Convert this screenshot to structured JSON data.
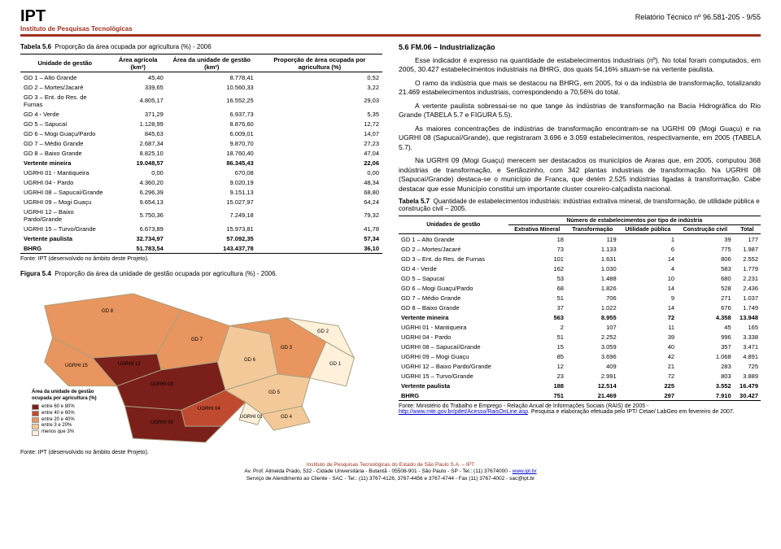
{
  "header": {
    "logo": "IPT",
    "logo_sub": "Instituto de Pesquisas Tecnológicas",
    "report": "Relatório Técnico nº 96.581-205 - 9/55"
  },
  "left": {
    "table56": {
      "title_bold": "Tabela 5.6",
      "title_rest": "Proporção da área ocupada por agricultura (%) - 2006",
      "headers": [
        "Unidade de gestão",
        "Área agrícola (km²)",
        "Área da unidade de gestão (km²)",
        "Proporção de área ocupada por agricultura (%)"
      ],
      "rows": [
        [
          "GD 1 – Alto Grande",
          "45,40",
          "8.778,41",
          "0,52"
        ],
        [
          "GD 2 – Mortes/Jacaré",
          "339,65",
          "10.560,33",
          "3,22"
        ],
        [
          "GD 3 – Ent. do Res. de Furnas",
          "4.805,17",
          "16.552,25",
          "29,03"
        ],
        [
          "GD 4 - Verde",
          "371,29",
          "6.937,73",
          "5,35"
        ],
        [
          "GD 5 – Sapucaí",
          "1.128,99",
          "8.876,60",
          "12,72"
        ],
        [
          "GD 6 – Mogi Guaçu/Pardo",
          "845,63",
          "6.009,01",
          "14,07"
        ],
        [
          "GD 7 – Médio Grande",
          "2.687,34",
          "9.870,70",
          "27,23"
        ],
        [
          "GD 8 – Baixo Grande",
          "8.825,10",
          "18.760,40",
          "47,04"
        ]
      ],
      "bold_rows": [
        [
          "Vertente mineira",
          "19.048,57",
          "86.345,43",
          "22,06"
        ]
      ],
      "rows2": [
        [
          "UGRHI 01 - Mantiqueira",
          "0,00",
          "670,08",
          "0,00"
        ],
        [
          "UGRHI 04 - Pardo",
          "4.360,20",
          "9.020,19",
          "48,34"
        ],
        [
          "UGRHI 08 – Sapucaí/Grande",
          "6.296,39",
          "9.151,13",
          "68,80"
        ],
        [
          "UGRHI 09 – Mogi Guaçu",
          "9.654,13",
          "15.027,97",
          "64,24"
        ],
        [
          "UGRHI 12 – Baixo Pardo/Grande",
          "5.750,36",
          "7.249,18",
          "79,32"
        ],
        [
          "UGRHI 15 – Turvo/Grande",
          "6.673,89",
          "15.973,81",
          "41,78"
        ]
      ],
      "bold_rows2": [
        [
          "Vertente paulista",
          "32.734,97",
          "57.092,35",
          "57,34"
        ],
        [
          "BHRG",
          "51.783,54",
          "143.437,78",
          "36,10"
        ]
      ],
      "source": "Fonte: IPT (desenvolvido no âmbito deste Projeto)."
    },
    "figure54": {
      "title_bold": "Figura 5.4",
      "title_rest": "Proporção da área da unidade de gestão ocupada por agricultura (%) - 2006.",
      "source": "Fonte: IPT (desenvolvido no âmbito deste Projeto).",
      "legend": {
        "title": "Área da unidade de gestão ocupada por agricultura (%)",
        "items": [
          {
            "color": "#7a1f1a",
            "label": "entre 60 e 80%"
          },
          {
            "color": "#c04a30",
            "label": "entre 40 e 60%"
          },
          {
            "color": "#e8955f",
            "label": "entre 20 e 40%"
          },
          {
            "color": "#f4c99a",
            "label": "entre 3 e 20%"
          },
          {
            "color": "#fef0d9",
            "label": "menos que 3%"
          }
        ]
      },
      "region_labels": [
        "GD 8",
        "UGRHI 15",
        "UGRHI 12",
        "UGRHI 08",
        "GD 7",
        "UGRHI 04",
        "UGRHI 09",
        "GD 6",
        "GD 3",
        "GD 2",
        "GD 1",
        "GD 5",
        "GD 4",
        "UGRHI 01"
      ],
      "region_styles": {
        "outline": "#a8a080",
        "bg": "#ffffff"
      }
    }
  },
  "right": {
    "section_title": "5.6  FM.06 – Industrialização",
    "paragraphs": [
      "Esse indicador é expresso na quantidade de estabelecimentos industriais (nº). No total foram computados, em 2005, 30.427 estabelecimentos industriais na BHRG, dos quais 54,16% situam-se na vertente paulista.",
      "O ramo da indústria que mais se destacou na BHRG, em 2005, foi o da indústria de transformação, totalizando 21.469 estabelecimentos industriais, correspondendo a 70,56% do total.",
      "A vertente paulista sobressai-se no que tange às indústrias de transformação na Bacia Hidrográfica do Rio Grande (TABELA 5.7 e FIGURA 5.5).",
      "As maiores concentrações de indústrias de transformação encontram-se na UGRHI 09 (Mogi Guaçu) e na UGRHI 08 (Sapucaí/Grande), que registraram 3.696 e 3.059 estabelecimentos, respectivamente, em 2005 (TABELA 5.7).",
      "Na UGRHI 09 (Mogi Guaçu) merecem ser destacados os municípios de Araras que, em 2005, computou 368 indústrias de transformação, e Sertãozinho, com 342 plantas industriais de transformação. Na UGRHI 08 (Sapucaí/Grande) destaca-se o município de Franca, que detém 2.525 indústrias ligadas à transformação. Cabe destacar que esse Município constitui um importante cluster coureiro-calçadista nacional."
    ],
    "table57": {
      "title_bold": "Tabela 5.7",
      "title_rest": "Quantidade de estabelecimentos industriais: indústrias extrativa mineral, de transformação, de utilidade pública e construção civil – 2005.",
      "sup_header": "Número de estabelecimentos por tipo de indústria",
      "headers": [
        "Unidades de gestão",
        "Extrativa Mineral",
        "Transformação",
        "Utilidade pública",
        "Construção civil",
        "Total"
      ],
      "rows": [
        [
          "GD 1 – Alto Grande",
          "18",
          "119",
          "1",
          "39",
          "177"
        ],
        [
          "GD 2 – Mortes/Jacaré",
          "73",
          "1.133",
          "6",
          "775",
          "1.987"
        ],
        [
          "GD 3 – Ent. do Res. de Furnas",
          "101",
          "1.631",
          "14",
          "806",
          "2.552"
        ],
        [
          "GD 4 - Verde",
          "162",
          "1.030",
          "4",
          "583",
          "1.779"
        ],
        [
          "GD 5 – Sapucaí",
          "53",
          "1.488",
          "10",
          "680",
          "2.231"
        ],
        [
          "GD 6 – Mogi Guaçu/Pardo",
          "68",
          "1.826",
          "14",
          "528",
          "2.436"
        ],
        [
          "GD 7 – Médio Grande",
          "51",
          "706",
          "9",
          "271",
          "1.037"
        ],
        [
          "GD 8 – Baixo Grande",
          "37",
          "1.022",
          "14",
          "676",
          "1.749"
        ]
      ],
      "bold_rows": [
        [
          "Vertente mineira",
          "563",
          "8.955",
          "72",
          "4.358",
          "13.948"
        ]
      ],
      "rows2": [
        [
          "UGRHI 01 - Mantiqueira",
          "2",
          "107",
          "11",
          "45",
          "165"
        ],
        [
          "UGRHI 04 - Pardo",
          "51",
          "2.252",
          "39",
          "996",
          "3.338"
        ],
        [
          "UGRHI 08 – Sapucaí/Grande",
          "15",
          "3.059",
          "40",
          "357",
          "3.471"
        ],
        [
          "UGRHI 09 – Mogi Guaçu",
          "85",
          "3.696",
          "42",
          "1.068",
          "4.891"
        ],
        [
          "UGRHI 12 – Baixo Pardo/Grande",
          "12",
          "409",
          "21",
          "283",
          "725"
        ],
        [
          "UGRHI 15 – Turvo/Grande",
          "23",
          "2.991",
          "72",
          "803",
          "3.889"
        ]
      ],
      "bold_rows2": [
        [
          "Vertente paulista",
          "188",
          "12.514",
          "225",
          "3.552",
          "16.479"
        ],
        [
          "BHRG",
          "751",
          "21.469",
          "297",
          "7.910",
          "30.427"
        ]
      ],
      "source_pre": "Fonte: Ministério do Trabalho e Emprego - Relação Anual de Informações Sociais (RAIS) de 2005 - ",
      "source_link": "http://www.mte.gov.br/pdet/Acesso/RaisOnLine.asp",
      "source_post": ". Pesquisa e elaboração efetuada pelo IPT/ Cetae/ LabGeo em fevereiro de 2007."
    }
  },
  "footer": {
    "l1": "Instituto de Pesquisas Tecnológicas do Estado de São Paulo S.A. – IPT",
    "l2_a": "Av. Prof. Almeida Prado, 532 - Cidade Universitária - Butantã - 05508-901 - São Paulo - SP - Tel.: (11) 37674000 - ",
    "l2_link": "www.ipt.br",
    "l3": "Serviço de Atendimento ao Cliente - SAC - Tel.: (11) 3767-4126, 3767-4456 e 3767-4744 - Fax (11) 3767-4002 - sac@ipt.br"
  }
}
